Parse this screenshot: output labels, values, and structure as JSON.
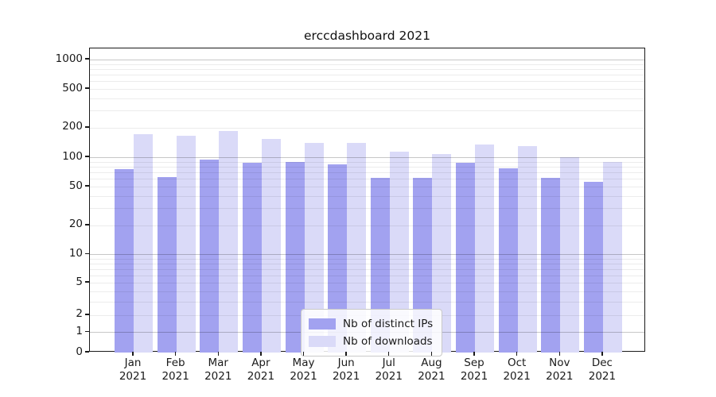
{
  "chart_data": {
    "type": "bar",
    "title": "erccdashboard 2021",
    "xlabel": "",
    "ylabel": "",
    "yscale": "asinh",
    "asinh_linear_width": 2,
    "ylim": [
      0,
      1300
    ],
    "yticks": [
      0,
      1,
      2,
      5,
      10,
      20,
      50,
      100,
      200,
      500,
      1000
    ],
    "decade_gridlines": [
      1,
      10,
      100,
      1000
    ],
    "minor_gridlines": [
      2,
      3,
      4,
      5,
      6,
      7,
      8,
      9,
      20,
      30,
      40,
      50,
      60,
      70,
      80,
      90,
      200,
      300,
      400,
      500,
      600,
      700,
      800,
      900
    ],
    "months": [
      "Jan",
      "Feb",
      "Mar",
      "Apr",
      "May",
      "Jun",
      "Jul",
      "Aug",
      "Sep",
      "Oct",
      "Nov",
      "Dec"
    ],
    "year": "2021",
    "series": [
      {
        "name": "Nb of distinct IPs",
        "color": "#a2a2f0",
        "values": [
          76,
          63,
          95,
          87,
          90,
          85,
          62,
          62,
          87,
          77,
          62,
          56
        ]
      },
      {
        "name": "Nb of downloads",
        "color": "#dadaf8",
        "values": [
          171,
          166,
          184,
          154,
          140,
          141,
          114,
          108,
          135,
          129,
          100,
          89
        ]
      }
    ],
    "legend": {
      "position": "lower-center-inside",
      "entries": [
        "Nb of distinct IPs",
        "Nb of downloads"
      ]
    },
    "grid": "horizontal, decade lines darker, minors faint, drawn over bars"
  }
}
